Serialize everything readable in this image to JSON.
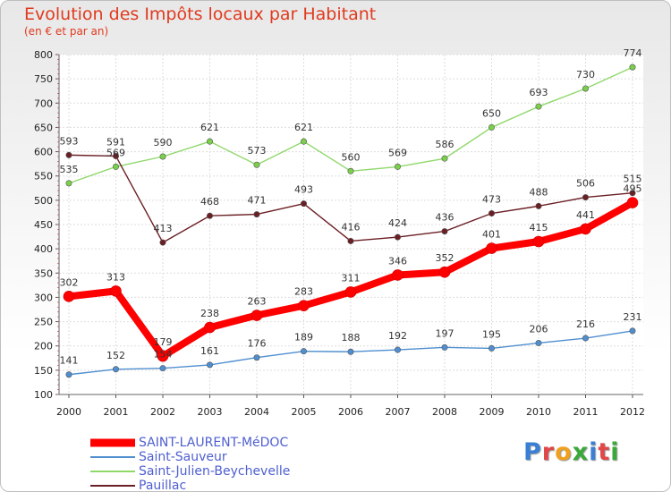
{
  "title": "Evolution des Impôts locaux par Habitant",
  "subtitle": "(en € et par an)",
  "logo_text": "Proxiti",
  "logo_colors": [
    "#3a7fd5",
    "#e04848",
    "#f0a020",
    "#3aa83a",
    "#3a7fd5",
    "#e04848",
    "#3aa83a"
  ],
  "chart_data": {
    "type": "line",
    "x": [
      "2000",
      "2001",
      "2002",
      "2003",
      "2004",
      "2005",
      "2006",
      "2007",
      "2008",
      "2009",
      "2010",
      "2011",
      "2012"
    ],
    "ylim": [
      100,
      800
    ],
    "yticks": [
      100,
      150,
      200,
      250,
      300,
      350,
      400,
      450,
      500,
      550,
      600,
      650,
      700,
      750,
      800
    ],
    "grid": true,
    "legend_position": "bottom-left",
    "series": [
      {
        "name": "SAINT-LAURENT-MéDOC",
        "color": "#ff0000",
        "marker": "#ff0000",
        "thick": true,
        "values": [
          302,
          313,
          179,
          238,
          263,
          283,
          311,
          346,
          352,
          401,
          415,
          441,
          495
        ]
      },
      {
        "name": "Saint-Sauveur",
        "color": "#4f8fd0",
        "marker": "#4f8fd0",
        "thick": false,
        "values": [
          141,
          152,
          154,
          161,
          176,
          189,
          188,
          192,
          197,
          195,
          206,
          216,
          231
        ]
      },
      {
        "name": "Saint-Julien-Beychevelle",
        "color": "#8fd86a",
        "marker": "#7ad04a",
        "thick": false,
        "values": [
          535,
          569,
          590,
          621,
          573,
          621,
          560,
          569,
          586,
          650,
          693,
          730,
          774
        ]
      },
      {
        "name": "Pauillac",
        "color": "#6b1f24",
        "marker": "#6b1f24",
        "thick": false,
        "values": [
          593,
          591,
          413,
          468,
          471,
          493,
          416,
          424,
          436,
          473,
          488,
          506,
          515
        ]
      }
    ],
    "data_labels": [
      {
        "series": 0,
        "values": [
          "302",
          "313",
          "179",
          "238",
          "263",
          "283",
          "311",
          "346",
          "352",
          "401",
          "415",
          "441",
          "495"
        ]
      },
      {
        "series": 1,
        "values": [
          "141",
          "152",
          "154",
          "161",
          "176",
          "189",
          "188",
          "192",
          "197",
          "195",
          "206",
          "216",
          "231"
        ]
      },
      {
        "series": 2,
        "values": [
          "535",
          "569",
          "590",
          "621",
          "573",
          "621",
          "560",
          "569",
          "586",
          "650",
          "693",
          "730",
          "774"
        ]
      },
      {
        "series": 3,
        "values": [
          "593",
          "591",
          "413",
          "468",
          "471",
          "493",
          "416",
          "424",
          "436",
          "473",
          "488",
          "506",
          "515"
        ]
      }
    ]
  }
}
